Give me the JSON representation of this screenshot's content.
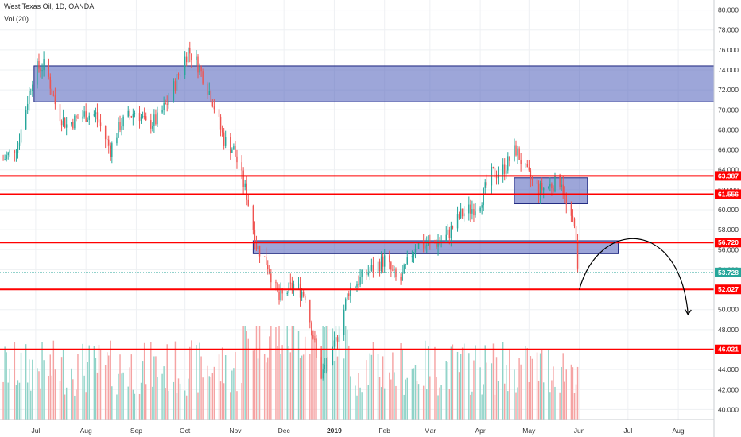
{
  "header": {
    "title": "West Texas Oil, 1D, OANDA",
    "volume_label": "Vol (20)"
  },
  "colors": {
    "up": "#26a69a",
    "down": "#ef5350",
    "vol_up": "#8fd3c8",
    "vol_down": "#f5a3a3",
    "zone_fill": "#5c6bc0",
    "level_line": "#ff0000",
    "last_price": "#26a69a"
  },
  "chart_data": {
    "type": "candlestick",
    "symbol": "West Texas Oil",
    "timeframe": "1D",
    "source": "OANDA",
    "ylim": [
      39,
      81
    ],
    "y_ticks": [
      "40.000",
      "42.000",
      "44.000",
      "46.000",
      "48.000",
      "50.000",
      "52.000",
      "54.000",
      "56.000",
      "58.000",
      "60.000",
      "62.000",
      "64.000",
      "66.000",
      "68.000",
      "70.000",
      "72.000",
      "74.000",
      "76.000",
      "78.000",
      "80.000"
    ],
    "x_ticks": [
      "Jul",
      "Aug",
      "Sep",
      "Oct",
      "Nov",
      "Dec",
      "2019",
      "Feb",
      "Mar",
      "Apr",
      "May",
      "Jun",
      "Jul",
      "Aug"
    ],
    "x_range": [
      "2018-06-09",
      "2019-08-23"
    ],
    "price_path": [
      [
        "2018-06-11",
        65.0
      ],
      [
        "2018-06-20",
        66.5
      ],
      [
        "2018-06-30",
        74.0
      ],
      [
        "2018-07-07",
        74.5
      ],
      [
        "2018-07-14",
        70.0
      ],
      [
        "2018-07-20",
        68.5
      ],
      [
        "2018-07-31",
        69.5
      ],
      [
        "2018-08-07",
        69.5
      ],
      [
        "2018-08-16",
        66.0
      ],
      [
        "2018-08-22",
        68.5
      ],
      [
        "2018-09-01",
        70.0
      ],
      [
        "2018-09-07",
        68.5
      ],
      [
        "2018-09-14",
        69.0
      ],
      [
        "2018-09-21",
        71.0
      ],
      [
        "2018-10-03",
        76.0
      ],
      [
        "2018-10-09",
        74.5
      ],
      [
        "2018-10-17",
        71.5
      ],
      [
        "2018-10-25",
        67.0
      ],
      [
        "2018-10-31",
        66.0
      ],
      [
        "2018-11-08",
        61.5
      ],
      [
        "2018-11-14",
        56.5
      ],
      [
        "2018-11-21",
        54.5
      ],
      [
        "2018-11-28",
        51.0
      ],
      [
        "2018-12-07",
        52.5
      ],
      [
        "2018-12-14",
        51.5
      ],
      [
        "2018-12-20",
        46.5
      ],
      [
        "2018-12-24",
        43.5
      ],
      [
        "2018-12-31",
        45.5
      ],
      [
        "2019-01-10",
        52.0
      ],
      [
        "2019-01-20",
        53.5
      ],
      [
        "2019-02-01",
        55.0
      ],
      [
        "2019-02-10",
        52.5
      ],
      [
        "2019-02-20",
        56.5
      ],
      [
        "2019-03-01",
        56.5
      ],
      [
        "2019-03-10",
        57.0
      ],
      [
        "2019-03-20",
        59.5
      ],
      [
        "2019-03-31",
        60.5
      ],
      [
        "2019-04-08",
        63.5
      ],
      [
        "2019-04-15",
        64.0
      ],
      [
        "2019-04-23",
        66.0
      ],
      [
        "2019-04-30",
        63.5
      ],
      [
        "2019-05-07",
        62.0
      ],
      [
        "2019-05-15",
        62.5
      ],
      [
        "2019-05-21",
        63.0
      ],
      [
        "2019-05-26",
        58.5
      ],
      [
        "2019-05-29",
        59.0
      ],
      [
        "2019-05-31",
        53.7
      ]
    ],
    "last_price": 53.728,
    "horizontal_levels": [
      {
        "price": 63.387,
        "label": "63.387"
      },
      {
        "price": 61.556,
        "label": "61.556"
      },
      {
        "price": 56.72,
        "label": "56.720"
      },
      {
        "price": 52.027,
        "label": "52.027"
      },
      {
        "price": 46.021,
        "label": "46.021"
      }
    ],
    "zones": [
      {
        "x_start": "2018-06-30",
        "x_end": "2019-08-23",
        "y_low": 70.8,
        "y_high": 74.4
      },
      {
        "x_start": "2018-11-12",
        "x_end": "2019-06-25",
        "y_low": 55.6,
        "y_high": 56.9
      },
      {
        "x_start": "2019-04-22",
        "x_end": "2019-06-06",
        "y_low": 60.6,
        "y_high": 63.2
      }
    ],
    "projection": {
      "path": [
        [
          "2019-06-01",
          52.0
        ],
        [
          "2019-07-05",
          56.8
        ],
        [
          "2019-08-07",
          49.5
        ]
      ],
      "arrow": "down"
    },
    "volume": {
      "scale_max": 1.0
    }
  }
}
